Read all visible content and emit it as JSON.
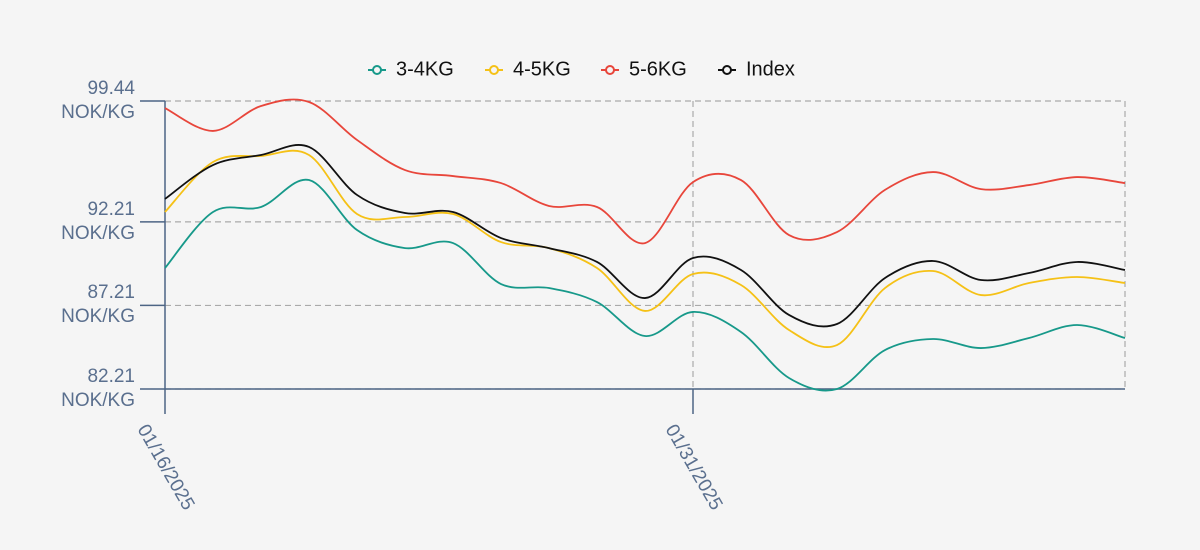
{
  "chart_data": {
    "type": "line",
    "categories": [
      "01/16/2025",
      null,
      null,
      null,
      null,
      null,
      null,
      null,
      null,
      null,
      null,
      "01/31/2025",
      null,
      null,
      null,
      null,
      null,
      null,
      null,
      null,
      null
    ],
    "series": [
      {
        "name": "3-4KG",
        "color": "#17998a",
        "values": [
          89.45,
          92.8,
          93.1,
          94.71,
          91.72,
          90.64,
          90.94,
          88.49,
          88.25,
          87.41,
          85.38,
          86.82,
          85.62,
          82.87,
          82.21,
          84.54,
          85.2,
          84.66,
          85.26,
          86.04,
          85.26
        ]
      },
      {
        "name": "4-5KG",
        "color": "#f5c116",
        "values": [
          92.8,
          95.79,
          96.15,
          96.21,
          92.68,
          92.5,
          92.68,
          91.0,
          90.64,
          89.45,
          86.88,
          89.09,
          88.43,
          85.74,
          84.84,
          88.25,
          89.27,
          87.83,
          88.55,
          88.91,
          88.55
        ]
      },
      {
        "name": "5-6KG",
        "color": "#e8463b",
        "values": [
          99.02,
          97.65,
          99.14,
          99.38,
          97.11,
          95.31,
          94.95,
          94.53,
          93.16,
          93.1,
          90.94,
          94.59,
          94.71,
          91.42,
          91.6,
          94.12,
          95.19,
          94.17,
          94.41,
          94.89,
          94.53
        ]
      },
      {
        "name": "Index",
        "color": "#111111",
        "values": [
          93.58,
          95.61,
          96.21,
          96.69,
          93.82,
          92.74,
          92.8,
          91.24,
          90.64,
          89.81,
          87.65,
          90.05,
          89.33,
          86.64,
          86.1,
          88.85,
          89.87,
          88.73,
          89.15,
          89.81,
          89.33
        ]
      }
    ],
    "ylim": [
      82.21,
      99.44
    ],
    "yticks": [
      {
        "value": 82.21,
        "label": "82.21 NOK/KG"
      },
      {
        "value": 87.21,
        "label": "87.21 NOK/KG"
      },
      {
        "value": 92.21,
        "label": "92.21 NOK/KG"
      },
      {
        "value": 99.44,
        "label": "99.44 NOK/KG"
      }
    ],
    "grid": true,
    "legend": "top"
  }
}
